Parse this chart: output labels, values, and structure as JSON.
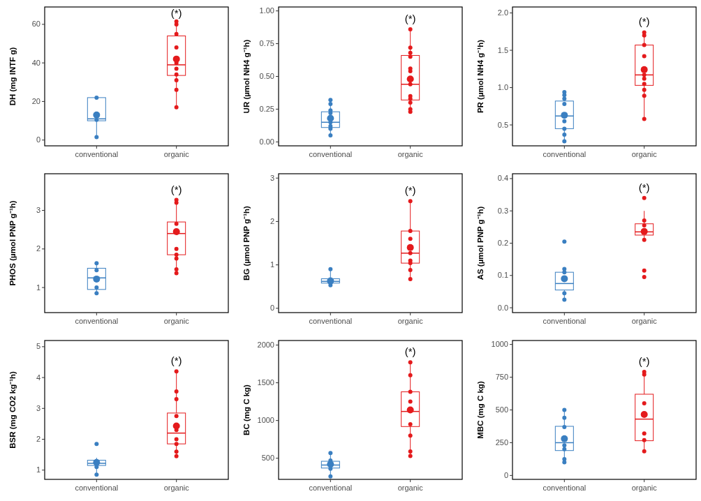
{
  "chart_data": [
    {
      "type": "box",
      "ylabel": "DH (mg INTF g)",
      "categories": [
        "conventional",
        "organic"
      ],
      "colors": [
        "#3a7fc1",
        "#e41a1c"
      ],
      "ylim": [
        -3,
        69
      ],
      "yticks": [
        0,
        20,
        40,
        60
      ],
      "grid": false,
      "marker": "circle",
      "boxes": [
        {
          "low": 1.5,
          "q1": 10,
          "median": 11,
          "q3": 22,
          "high": 22.5,
          "mean": 13
        },
        {
          "low": 17,
          "q1": 33.5,
          "median": 39,
          "q3": 54,
          "high": 61.5,
          "mean": 42
        }
      ],
      "series": [
        {
          "type": "scatter",
          "color": "#3a7fc1",
          "x": [
            "conventional",
            "conventional",
            "conventional"
          ],
          "values": [
            1.5,
            10.5,
            22
          ]
        },
        {
          "type": "scatter",
          "color": "#e41a1c",
          "x": [
            "organic",
            "organic",
            "organic",
            "organic",
            "organic",
            "organic",
            "organic",
            "organic",
            "organic",
            "organic"
          ],
          "values": [
            17,
            26,
            31,
            34,
            37,
            40,
            48,
            55,
            60,
            61.5
          ]
        }
      ],
      "annotations": [
        "(*)"
      ]
    },
    {
      "type": "box",
      "ylabel": "UR (µmol NH4 g⁻¹h)",
      "categories": [
        "conventional",
        "organic"
      ],
      "colors": [
        "#3a7fc1",
        "#e41a1c"
      ],
      "ylim": [
        -0.03,
        1.03
      ],
      "yticks": [
        {
          "value": 0,
          "label": "0.00"
        },
        0.25,
        {
          "value": 0.5,
          "label": "0.50"
        },
        0.75,
        {
          "value": 1,
          "label": "1.00"
        }
      ],
      "grid": false,
      "marker": "circle",
      "boxes": [
        {
          "low": 0.05,
          "q1": 0.11,
          "median": 0.15,
          "q3": 0.23,
          "high": 0.32,
          "mean": 0.18
        },
        {
          "low": 0.23,
          "q1": 0.32,
          "median": 0.44,
          "q3": 0.66,
          "high": 0.86,
          "mean": 0.48
        }
      ],
      "series": [
        {
          "type": "scatter",
          "color": "#3a7fc1",
          "x": [
            "conventional",
            "conventional",
            "conventional",
            "conventional",
            "conventional",
            "conventional",
            "conventional",
            "conventional"
          ],
          "values": [
            0.05,
            0.1,
            0.12,
            0.15,
            0.22,
            0.24,
            0.29,
            0.32
          ]
        },
        {
          "type": "scatter",
          "color": "#e41a1c",
          "x": [
            "organic",
            "organic",
            "organic",
            "organic",
            "organic",
            "organic",
            "organic",
            "organic",
            "organic",
            "organic",
            "organic",
            "organic"
          ],
          "values": [
            0.23,
            0.25,
            0.3,
            0.33,
            0.35,
            0.44,
            0.54,
            0.56,
            0.65,
            0.68,
            0.72,
            0.86
          ]
        }
      ],
      "annotations": [
        "(*)"
      ]
    },
    {
      "type": "box",
      "ylabel": "PR (µmol NH4 g⁻¹h)",
      "categories": [
        "conventional",
        "organic"
      ],
      "colors": [
        "#3a7fc1",
        "#e41a1c"
      ],
      "ylim": [
        0.22,
        2.08
      ],
      "yticks": [
        0.5,
        {
          "value": 1,
          "label": "1.0"
        },
        1.5,
        {
          "value": 2,
          "label": "2.0"
        }
      ],
      "grid": false,
      "marker": "circle",
      "boxes": [
        {
          "low": 0.28,
          "q1": 0.45,
          "median": 0.62,
          "q3": 0.82,
          "high": 0.94,
          "mean": 0.63
        },
        {
          "low": 0.58,
          "q1": 1.03,
          "median": 1.17,
          "q3": 1.57,
          "high": 1.74,
          "mean": 1.24
        }
      ],
      "series": [
        {
          "type": "scatter",
          "color": "#3a7fc1",
          "x": [
            "conventional",
            "conventional",
            "conventional",
            "conventional",
            "conventional",
            "conventional",
            "conventional",
            "conventional"
          ],
          "values": [
            0.28,
            0.37,
            0.45,
            0.55,
            0.78,
            0.85,
            0.9,
            0.94
          ]
        },
        {
          "type": "scatter",
          "color": "#e41a1c",
          "x": [
            "organic",
            "organic",
            "organic",
            "organic",
            "organic",
            "organic",
            "organic",
            "organic",
            "organic",
            "organic"
          ],
          "values": [
            0.58,
            0.89,
            0.97,
            1.05,
            1.12,
            1.17,
            1.42,
            1.57,
            1.7,
            1.74
          ]
        }
      ],
      "annotations": [
        "(*)"
      ]
    },
    {
      "type": "box",
      "ylabel": "PHOS (µmol PNP g⁻¹h)",
      "categories": [
        "conventional",
        "organic"
      ],
      "colors": [
        "#3a7fc1",
        "#e41a1c"
      ],
      "ylim": [
        0.35,
        3.95
      ],
      "yticks": [
        1,
        2,
        3
      ],
      "grid": false,
      "marker": "circle",
      "boxes": [
        {
          "low": 0.85,
          "q1": 0.95,
          "median": 1.25,
          "q3": 1.5,
          "high": 1.63,
          "mean": 1.22
        },
        {
          "low": 1.37,
          "q1": 1.85,
          "median": 2.4,
          "q3": 2.7,
          "high": 3.27,
          "mean": 2.45
        }
      ],
      "series": [
        {
          "type": "scatter",
          "color": "#3a7fc1",
          "x": [
            "conventional",
            "conventional",
            "conventional",
            "conventional"
          ],
          "values": [
            0.85,
            1,
            1.45,
            1.63
          ]
        },
        {
          "type": "scatter",
          "color": "#e41a1c",
          "x": [
            "organic",
            "organic",
            "organic",
            "organic",
            "organic",
            "organic",
            "organic",
            "organic"
          ],
          "values": [
            1.37,
            1.47,
            1.75,
            1.85,
            2,
            2.65,
            3.2,
            3.27
          ]
        }
      ],
      "annotations": [
        "(*)"
      ]
    },
    {
      "type": "box",
      "ylabel": "BG (µmol PNP g⁻¹h)",
      "categories": [
        "conventional",
        "organic"
      ],
      "colors": [
        "#3a7fc1",
        "#e41a1c"
      ],
      "ylim": [
        -0.1,
        3.1
      ],
      "yticks": [
        0,
        1,
        2,
        3
      ],
      "grid": false,
      "marker": "circle",
      "boxes": [
        {
          "low": 0.53,
          "q1": 0.58,
          "median": 0.62,
          "q3": 0.68,
          "high": 0.9,
          "mean": 0.63
        },
        {
          "low": 0.67,
          "q1": 1.04,
          "median": 1.27,
          "q3": 1.78,
          "high": 2.47,
          "mean": 1.4
        }
      ],
      "series": [
        {
          "type": "scatter",
          "color": "#3a7fc1",
          "x": [
            "conventional",
            "conventional"
          ],
          "values": [
            0.53,
            0.9
          ]
        },
        {
          "type": "scatter",
          "color": "#e41a1c",
          "x": [
            "organic",
            "organic",
            "organic",
            "organic",
            "organic",
            "organic",
            "organic",
            "organic"
          ],
          "values": [
            0.67,
            0.88,
            1.04,
            1.1,
            1.27,
            1.6,
            1.78,
            2.47
          ]
        }
      ],
      "annotations": [
        "(*)"
      ]
    },
    {
      "type": "box",
      "ylabel": "AS (µmol PNP g⁻¹h)",
      "categories": [
        "conventional",
        "organic"
      ],
      "colors": [
        "#3a7fc1",
        "#e41a1c"
      ],
      "ylim": [
        -0.015,
        0.415
      ],
      "yticks": [
        {
          "value": 0,
          "label": "0.0"
        },
        0.1,
        0.2,
        0.3,
        0.4
      ],
      "grid": false,
      "marker": "circle",
      "boxes": [
        {
          "low": 0.025,
          "q1": 0.055,
          "median": 0.075,
          "q3": 0.11,
          "high": 0.12,
          "mean": 0.09
        },
        {
          "low": 0.21,
          "q1": 0.225,
          "median": 0.235,
          "q3": 0.26,
          "high": 0.3,
          "mean": 0.236
        }
      ],
      "series": [
        {
          "type": "scatter",
          "color": "#3a7fc1",
          "x": [
            "conventional",
            "conventional",
            "conventional",
            "conventional",
            "conventional"
          ],
          "values": [
            0.025,
            0.045,
            0.11,
            0.12,
            0.205
          ]
        },
        {
          "type": "scatter",
          "color": "#e41a1c",
          "x": [
            "organic",
            "organic",
            "organic",
            "organic",
            "organic",
            "organic"
          ],
          "values": [
            0.095,
            0.115,
            0.21,
            0.255,
            0.27,
            0.34
          ]
        }
      ],
      "annotations": [
        "(*)"
      ]
    },
    {
      "type": "box",
      "ylabel": "BSR (mg CO2 kg⁻¹h)",
      "categories": [
        "conventional",
        "organic"
      ],
      "colors": [
        "#3a7fc1",
        "#e41a1c"
      ],
      "ylim": [
        0.7,
        5.2
      ],
      "yticks": [
        1,
        2,
        3,
        4,
        5
      ],
      "grid": false,
      "marker": "circle",
      "boxes": [
        {
          "low": 0.85,
          "q1": 1.15,
          "median": 1.22,
          "q3": 1.32,
          "high": 1.4,
          "mean": 1.25
        },
        {
          "low": 1.45,
          "q1": 1.85,
          "median": 2.2,
          "q3": 2.85,
          "high": 4.2,
          "mean": 2.43
        }
      ],
      "series": [
        {
          "type": "scatter",
          "color": "#3a7fc1",
          "x": [
            "conventional",
            "conventional",
            "conventional"
          ],
          "values": [
            0.85,
            1.1,
            1.85
          ]
        },
        {
          "type": "scatter",
          "color": "#e41a1c",
          "x": [
            "organic",
            "organic",
            "organic",
            "organic",
            "organic",
            "organic",
            "organic",
            "organic",
            "organic"
          ],
          "values": [
            1.45,
            1.6,
            1.85,
            2,
            2.3,
            2.75,
            3.3,
            3.55,
            4.2
          ]
        }
      ],
      "annotations": [
        "(*)"
      ]
    },
    {
      "type": "box",
      "ylabel": "BC (mg C kg)",
      "categories": [
        "conventional",
        "organic"
      ],
      "colors": [
        "#3a7fc1",
        "#e41a1c"
      ],
      "ylim": [
        220,
        2060
      ],
      "yticks": [
        500,
        1000,
        1500,
        2000
      ],
      "grid": false,
      "marker": "circle",
      "boxes": [
        {
          "low": 260,
          "q1": 370,
          "median": 410,
          "q3": 460,
          "high": 570,
          "mean": 420
        },
        {
          "low": 530,
          "q1": 920,
          "median": 1120,
          "q3": 1380,
          "high": 1770,
          "mean": 1140
        }
      ],
      "series": [
        {
          "type": "scatter",
          "color": "#3a7fc1",
          "x": [
            "conventional",
            "conventional",
            "conventional",
            "conventional"
          ],
          "values": [
            260,
            360,
            470,
            570
          ]
        },
        {
          "type": "scatter",
          "color": "#e41a1c",
          "x": [
            "organic",
            "organic",
            "organic",
            "organic",
            "organic",
            "organic",
            "organic",
            "organic"
          ],
          "values": [
            530,
            590,
            800,
            950,
            1250,
            1380,
            1600,
            1770
          ]
        }
      ],
      "annotations": [
        "(*)"
      ]
    },
    {
      "type": "box",
      "ylabel": "MBC (mg C kg)",
      "categories": [
        "conventional",
        "organic"
      ],
      "colors": [
        "#3a7fc1",
        "#e41a1c"
      ],
      "ylim": [
        -30,
        1030
      ],
      "yticks": [
        0,
        250,
        500,
        750,
        1000
      ],
      "grid": false,
      "marker": "circle",
      "boxes": [
        {
          "low": 100,
          "q1": 190,
          "median": 250,
          "q3": 375,
          "high": 500,
          "mean": 280
        },
        {
          "low": 185,
          "q1": 265,
          "median": 430,
          "q3": 620,
          "high": 790,
          "mean": 465
        }
      ],
      "series": [
        {
          "type": "scatter",
          "color": "#3a7fc1",
          "x": [
            "conventional",
            "conventional",
            "conventional",
            "conventional",
            "conventional",
            "conventional",
            "conventional"
          ],
          "values": [
            100,
            125,
            200,
            230,
            370,
            440,
            500
          ]
        },
        {
          "type": "scatter",
          "color": "#e41a1c",
          "x": [
            "organic",
            "organic",
            "organic",
            "organic",
            "organic",
            "organic"
          ],
          "values": [
            185,
            270,
            320,
            550,
            770,
            790
          ]
        }
      ],
      "annotations": [
        "(*)"
      ]
    }
  ]
}
